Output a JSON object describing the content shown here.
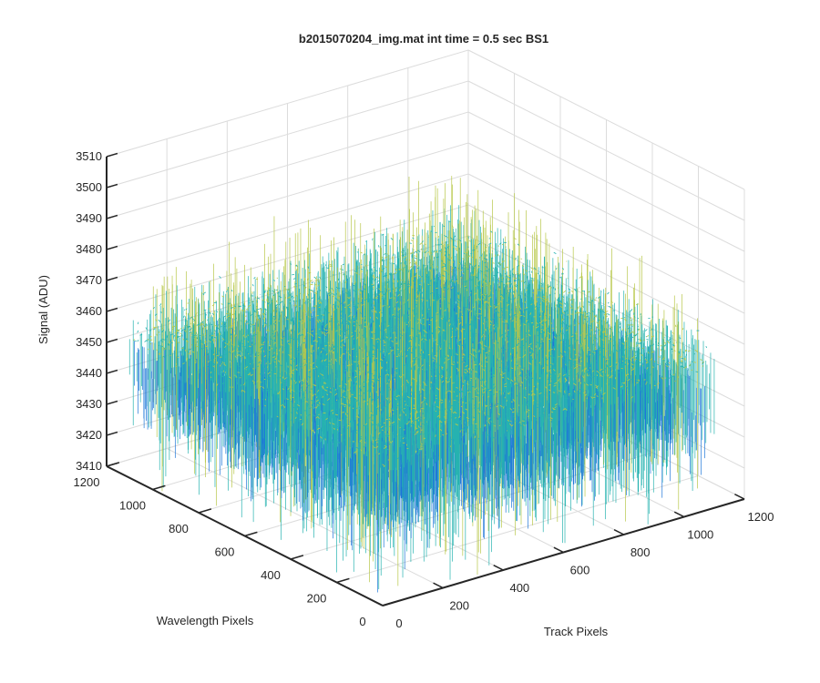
{
  "chart_data": {
    "type": "surface",
    "title": "b2015070204_img.mat int time = 0.5 sec   BS1",
    "xlabel": "Track Pixels",
    "ylabel": "Wavelength Pixels",
    "zlabel": "Signal (ADU)",
    "xlim": [
      0,
      1200
    ],
    "ylim": [
      0,
      1200
    ],
    "zlim": [
      3410,
      3510
    ],
    "x_ticks": [
      0,
      200,
      400,
      600,
      800,
      1000,
      1200
    ],
    "x_tick_labels": [
      "0",
      "200",
      "400",
      "600",
      "800",
      "1000",
      "1200"
    ],
    "y_ticks": [
      0,
      200,
      400,
      600,
      800,
      1000,
      1200
    ],
    "y_tick_labels": [
      "0",
      "200",
      "400",
      "600",
      "800",
      "1000",
      "1200"
    ],
    "z_ticks": [
      3410,
      3420,
      3430,
      3440,
      3450,
      3460,
      3470,
      3480,
      3490,
      3500,
      3510
    ],
    "z_tick_labels": [
      "3410",
      "3420",
      "3430",
      "3440",
      "3450",
      "3460",
      "3470",
      "3480",
      "3490",
      "3500",
      "3510"
    ],
    "grid": true,
    "data_extent": {
      "x": [
        0,
        1100
      ],
      "y": [
        0,
        1100
      ]
    },
    "signal_mean": 3445,
    "signal_noise_range": [
      3420,
      3480
    ],
    "colors": {
      "low": "#1f77d8",
      "mid": "#27b3b0",
      "high": "#b8c84a",
      "axis": "#262626",
      "grid": "#dcdcdc"
    }
  }
}
